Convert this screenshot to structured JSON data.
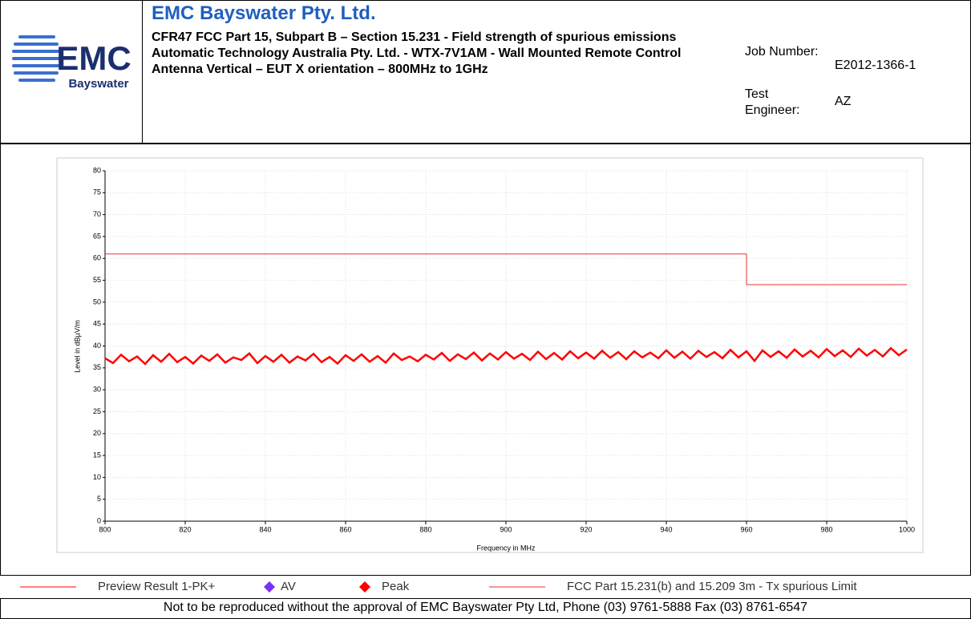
{
  "header": {
    "logo": {
      "brand": "EMC",
      "place": "Bayswater"
    },
    "title": "EMC Bayswater Pty. Ltd.",
    "lines": [
      "CFR47 FCC Part 15, Subpart B – Section 15.231 - Field strength of spurious emissions",
      "Automatic Technology Australia Pty. Ltd. - WTX-7V1AM - Wall Mounted Remote Control",
      "Antenna Vertical – EUT X orientation – 800MHz to 1GHz"
    ],
    "fields": [
      {
        "label": "Job Number:",
        "value": "E2012-1366-1"
      },
      {
        "label": "Test Engineer:",
        "value": "AZ"
      }
    ]
  },
  "chart_data": {
    "type": "line",
    "xlabel": "Frequency in MHz",
    "ylabel": "Level in dBµV/m",
    "xlim": [
      800,
      1000
    ],
    "ylim": [
      0,
      80
    ],
    "xticks": [
      800,
      820,
      840,
      860,
      880,
      900,
      920,
      940,
      960,
      980,
      1000
    ],
    "yticks": [
      0,
      5,
      10,
      15,
      20,
      25,
      30,
      35,
      40,
      45,
      50,
      55,
      60,
      65,
      70,
      75,
      80
    ],
    "grid": true,
    "series": [
      {
        "name": "Preview Result 1-PK+",
        "color": "#ff0000",
        "x": [
          800,
          802,
          804,
          806,
          808,
          810,
          812,
          814,
          816,
          818,
          820,
          822,
          824,
          826,
          828,
          830,
          832,
          834,
          836,
          838,
          840,
          842,
          844,
          846,
          848,
          850,
          852,
          854,
          856,
          858,
          860,
          862,
          864,
          866,
          868,
          870,
          872,
          874,
          876,
          878,
          880,
          882,
          884,
          886,
          888,
          890,
          892,
          894,
          896,
          898,
          900,
          902,
          904,
          906,
          908,
          910,
          912,
          914,
          916,
          918,
          920,
          922,
          924,
          926,
          928,
          930,
          932,
          934,
          936,
          938,
          940,
          942,
          944,
          946,
          948,
          950,
          952,
          954,
          956,
          958,
          960,
          962,
          964,
          966,
          968,
          970,
          972,
          974,
          976,
          978,
          980,
          982,
          984,
          986,
          988,
          990,
          992,
          994,
          996,
          998,
          1000
        ],
        "values": [
          37.2,
          36.1,
          38.0,
          36.5,
          37.6,
          35.9,
          37.9,
          36.4,
          38.2,
          36.3,
          37.5,
          36.0,
          37.8,
          36.6,
          38.1,
          36.2,
          37.4,
          36.8,
          38.3,
          36.1,
          37.7,
          36.4,
          38.0,
          36.2,
          37.6,
          36.7,
          38.2,
          36.3,
          37.5,
          36.0,
          37.9,
          36.6,
          38.1,
          36.4,
          37.7,
          36.2,
          38.3,
          36.8,
          37.6,
          36.5,
          38.0,
          36.9,
          38.4,
          36.6,
          38.1,
          37.0,
          38.5,
          36.7,
          38.3,
          36.9,
          38.6,
          37.1,
          38.2,
          36.8,
          38.7,
          37.0,
          38.4,
          36.9,
          38.8,
          37.2,
          38.5,
          37.1,
          38.9,
          37.3,
          38.6,
          37.0,
          38.8,
          37.4,
          38.5,
          37.2,
          39.0,
          37.3,
          38.7,
          37.1,
          38.9,
          37.5,
          38.6,
          37.2,
          39.1,
          37.4,
          38.8,
          36.6,
          39.0,
          37.5,
          38.8,
          37.3,
          39.2,
          37.6,
          38.9,
          37.4,
          39.3,
          37.7,
          39.0,
          37.5,
          39.4,
          37.8,
          39.1,
          37.6,
          39.5,
          37.9,
          39.2
        ]
      },
      {
        "name": "FCC Part 15.231(b) and 15.209 3m - Tx spurious Limit",
        "color": "#e83030",
        "x": [
          800,
          960,
          960,
          1000
        ],
        "values": [
          61,
          61,
          54,
          54
        ]
      }
    ],
    "markers": [
      {
        "name": "AV",
        "color": "#7b2ff7"
      },
      {
        "name": "Peak",
        "color": "#ff0000"
      }
    ]
  },
  "footer": "Not to be reproduced without the approval of EMC Bayswater Pty Ltd, Phone (03) 9761-5888 Fax (03) 8761-6547"
}
